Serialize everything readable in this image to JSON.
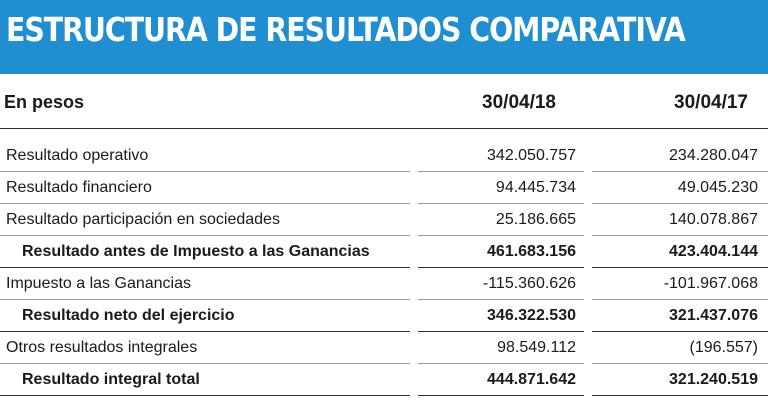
{
  "title": "ESTRUCTURA DE RESULTADOS COMPARATIVA",
  "header": {
    "label": "En pesos",
    "col1": "30/04/18",
    "col2": "30/04/17"
  },
  "rows": [
    {
      "label": "Resultado operativo",
      "v1": "342.050.757",
      "v2": "234.280.047"
    },
    {
      "label": "Resultado financiero",
      "v1": "94.445.734",
      "v2": "49.045.230"
    },
    {
      "label": "Resultado participación en sociedades",
      "v1": "25.186.665",
      "v2": "140.078.867"
    },
    {
      "label": "Resultado antes de Impuesto a las Ganancias",
      "v1": "461.683.156",
      "v2": "423.404.144"
    },
    {
      "label": "Impuesto a las Ganancias",
      "v1": "-115.360.626",
      "v2": "-101.967.068"
    },
    {
      "label": "Resultado neto del ejercicio",
      "v1": "346.322.530",
      "v2": "321.437.076"
    },
    {
      "label": "Otros resultados integrales",
      "v1": "98.549.112",
      "v2": "(196.557)"
    },
    {
      "label": "Resultado integral total",
      "v1": "444.871.642",
      "v2": "321.240.519"
    }
  ],
  "colors": {
    "title_bar": "#1f8fd2",
    "title_text": "#ffffff"
  }
}
